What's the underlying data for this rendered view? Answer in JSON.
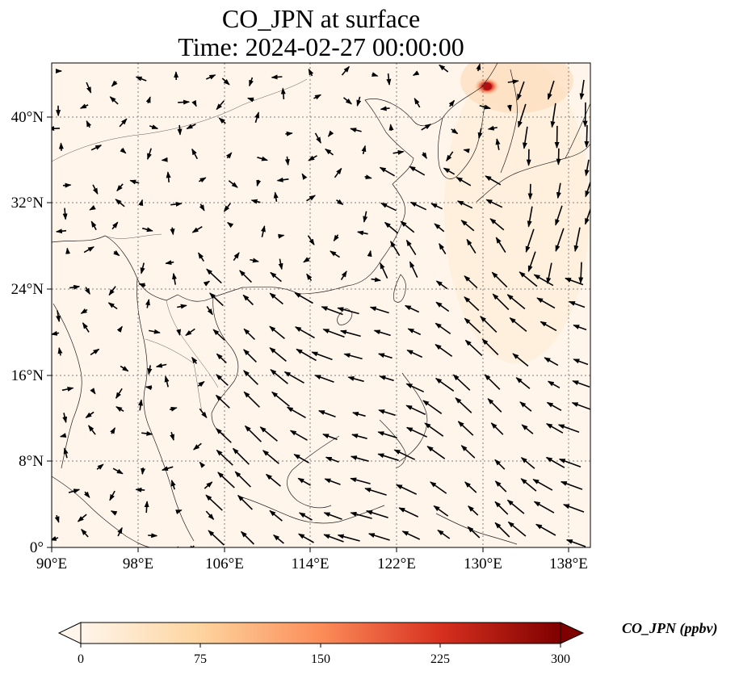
{
  "title": {
    "line1": "CO_JPN at surface",
    "line2": "Time: 2024-02-27 00:00:00"
  },
  "map": {
    "lon_range": [
      90,
      140
    ],
    "lat_range": [
      0,
      45
    ],
    "x_ticks": [
      "90°E",
      "98°E",
      "106°E",
      "114°E",
      "122°E",
      "130°E",
      "138°E"
    ],
    "y_ticks": [
      "0°",
      "8°N",
      "16°N",
      "24°N",
      "32°N",
      "40°N"
    ],
    "grid": "dotted",
    "background_color": "#fff5eb",
    "hotspot_color": "#b10f0f",
    "vector_color": "#000000"
  },
  "colorbar": {
    "label": "CO_JPN (ppbv)",
    "ticks": [
      "0",
      "75",
      "150",
      "225",
      "300"
    ],
    "colormap": [
      "#fff5eb",
      "#fdd49e",
      "#fc8d59",
      "#d7301f",
      "#7f0000"
    ],
    "extend": "both"
  }
}
